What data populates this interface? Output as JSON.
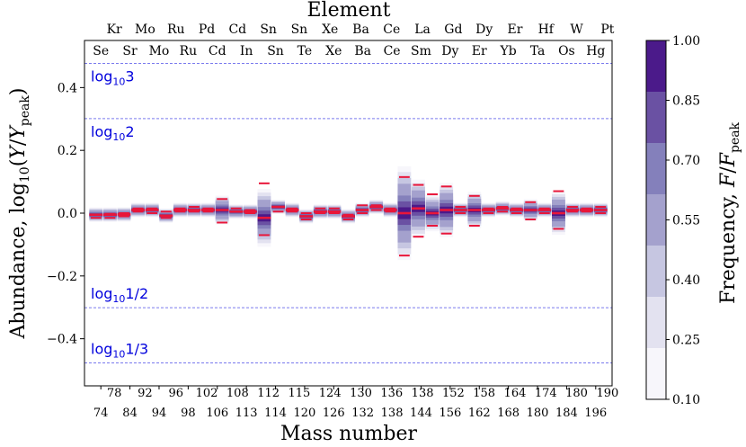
{
  "chart_data": {
    "type": "scatter",
    "title": "Element",
    "xlabel": "Mass number",
    "ylabel": "Abundance, log10(Y/Y_peak)",
    "ylabel_parts": {
      "pre": "Abundance,  log",
      "sub": "10",
      "paren_open": "(",
      "num": "Y",
      "slash": "/",
      "den": "Y",
      "den_sub": "peak",
      "paren_close": ")"
    },
    "ylim": [
      -0.55,
      0.55
    ],
    "yticks": [
      -0.4,
      -0.2,
      0.0,
      0.2,
      0.4
    ],
    "ytick_labels": [
      "−0.4",
      "−0.2",
      "0.0",
      "0.2",
      "0.4"
    ],
    "elements_top_outer": [
      "Kr",
      "Mo",
      "Ru",
      "Pd",
      "Cd",
      "Sn",
      "Sn",
      "Xe",
      "Ba",
      "Ce",
      "La",
      "Gd",
      "Dy",
      "Er",
      "Hf",
      "W",
      "Pt"
    ],
    "elements_top_inner": [
      "Se",
      "Sr",
      "Mo",
      "Ru",
      "Cd",
      "In",
      "Sn",
      "Te",
      "Xe",
      "Ba",
      "Ce",
      "Sm",
      "Dy",
      "Er",
      "Yb",
      "Ta",
      "Os",
      "Hg"
    ],
    "mass_upper": [
      "78",
      "92",
      "96",
      "102",
      "108",
      "112",
      "115",
      "124",
      "130",
      "136",
      "138",
      "152",
      "158",
      "164",
      "174",
      "180",
      "190"
    ],
    "mass_lower": [
      "74",
      "84",
      "94",
      "98",
      "106",
      "113",
      "114",
      "120",
      "126",
      "132",
      "138",
      "144",
      "156",
      "162",
      "168",
      "180",
      "184",
      "196"
    ],
    "reference_lines": [
      {
        "label_base": "log",
        "label_sub": "10",
        "label_arg": "3",
        "y": 0.477
      },
      {
        "label_base": "log",
        "label_sub": "10",
        "label_arg": "2",
        "y": 0.301
      },
      {
        "label_base": "log",
        "label_sub": "10",
        "label_arg": "1/2",
        "y": -0.301
      },
      {
        "label_base": "log",
        "label_sub": "10",
        "label_arg": "1/3",
        "y": -0.477
      }
    ],
    "series": [
      {
        "y_center": [
          -0.005,
          -0.005,
          -0.004,
          0.01,
          0.01,
          -0.008,
          0.01,
          0.01,
          0.01,
          0.01,
          0.005,
          0.005,
          -0.015,
          0.02,
          0.01,
          -0.01,
          0.005,
          0.005,
          -0.01,
          0.01,
          0.02,
          0.01,
          0.0,
          0.015,
          0.0,
          0.01,
          0.01,
          0.01,
          0.01,
          0.015,
          0.01,
          0.01,
          0.01,
          0.0,
          0.01,
          0.01,
          0.01
        ],
        "y_high": [
          -0.005,
          -0.002,
          0.0,
          0.015,
          0.015,
          0.005,
          0.015,
          0.02,
          0.015,
          0.045,
          0.015,
          0.01,
          0.095,
          0.02,
          0.015,
          0.0,
          0.015,
          0.015,
          -0.005,
          0.025,
          0.025,
          0.015,
          0.115,
          0.09,
          0.06,
          0.085,
          0.02,
          0.055,
          0.015,
          0.02,
          0.015,
          0.035,
          0.015,
          0.07,
          0.02,
          0.015,
          0.02
        ],
        "y_low": [
          -0.015,
          -0.015,
          -0.01,
          0.005,
          0.0,
          -0.015,
          0.005,
          0.005,
          0.005,
          -0.03,
          0.005,
          0.0,
          -0.07,
          0.005,
          0.005,
          -0.02,
          0.0,
          0.0,
          -0.02,
          0.0,
          0.01,
          0.005,
          -0.135,
          -0.075,
          -0.04,
          -0.065,
          0.0,
          -0.04,
          0.0,
          0.005,
          0.0,
          -0.02,
          0.0,
          -0.05,
          0.005,
          0.005,
          0.0
        ],
        "spread": [
          0.02,
          0.02,
          0.02,
          0.02,
          0.02,
          0.02,
          0.02,
          0.02,
          0.02,
          0.04,
          0.02,
          0.02,
          0.08,
          0.02,
          0.02,
          0.02,
          0.02,
          0.02,
          0.02,
          0.02,
          0.02,
          0.02,
          0.13,
          0.08,
          0.05,
          0.075,
          0.02,
          0.05,
          0.02,
          0.02,
          0.02,
          0.03,
          0.02,
          0.06,
          0.02,
          0.02,
          0.02
        ]
      }
    ],
    "colorbar": {
      "label": "Frequency,  F/F_peak",
      "label_parts": {
        "pre": "Frequency,  ",
        "num": "F",
        "slash": "/",
        "den": "F",
        "den_sub": "peak"
      },
      "ticks": [
        "0.10",
        "0.25",
        "0.40",
        "0.55",
        "0.70",
        "0.85",
        "1.00"
      ],
      "colors": [
        "#f7f6fb",
        "#e3e2f0",
        "#c6c6e1",
        "#a4a1cd",
        "#8480bb",
        "#6a51a3",
        "#4b1a8a"
      ]
    },
    "marker_color": "#e8163a",
    "reference_line_color": "#7a7aee"
  }
}
